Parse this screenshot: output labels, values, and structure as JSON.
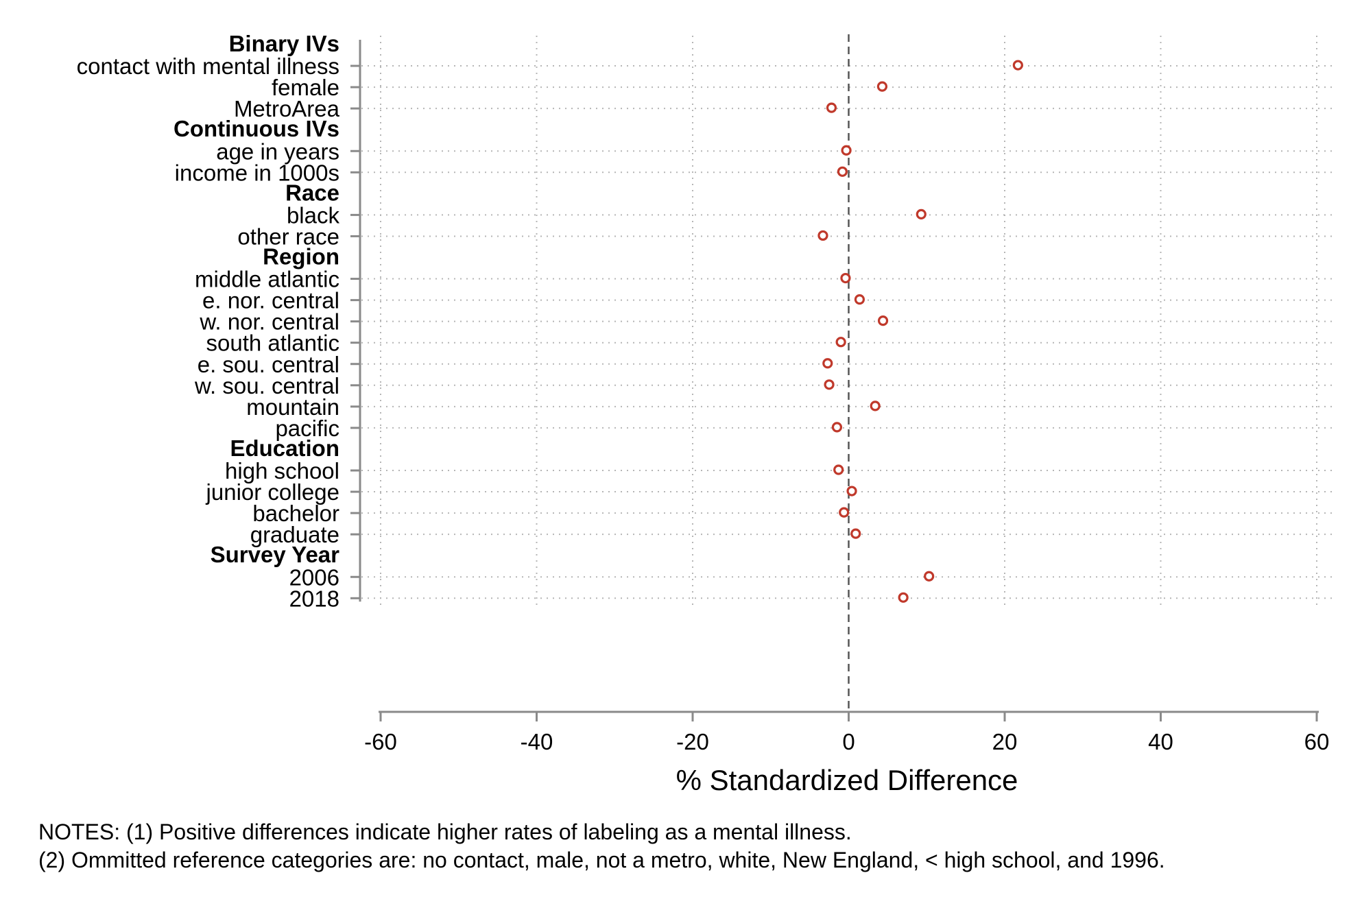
{
  "chart_data": {
    "type": "scatter",
    "xlabel": "% Standardized Difference",
    "ylabel": "",
    "xlim": [
      -60,
      60
    ],
    "xticks": [
      "-60",
      "-40",
      "-20",
      "0",
      "20",
      "40",
      "60"
    ],
    "grid": "dotted vertical at each x tick, dotted horizontal at each variable",
    "reference_line": 0,
    "marker": "hollow circle",
    "marker_color": "#c0392b",
    "groups": [
      {
        "header": "Binary IVs",
        "items": [
          {
            "label": "contact with mental illness",
            "value": 21.7
          },
          {
            "label": "female",
            "value": 4.3
          },
          {
            "label": "MetroArea",
            "value": -2.2
          }
        ]
      },
      {
        "header": "Continuous IVs",
        "items": [
          {
            "label": "age in years",
            "value": -0.3
          },
          {
            "label": "income in 1000s",
            "value": -0.8
          }
        ]
      },
      {
        "header": "Race",
        "items": [
          {
            "label": "black",
            "value": 9.3
          },
          {
            "label": "other race",
            "value": -3.3
          }
        ]
      },
      {
        "header": "Region",
        "items": [
          {
            "label": "middle atlantic",
            "value": -0.4
          },
          {
            "label": "e. nor. central",
            "value": 1.4
          },
          {
            "label": "w. nor. central",
            "value": 4.4
          },
          {
            "label": "south atlantic",
            "value": -1.0
          },
          {
            "label": "e. sou. central",
            "value": -2.7
          },
          {
            "label": "w. sou. central",
            "value": -2.5
          },
          {
            "label": "mountain",
            "value": 3.4
          },
          {
            "label": "pacific",
            "value": -1.5
          }
        ]
      },
      {
        "header": "Education",
        "items": [
          {
            "label": "high school",
            "value": -1.3
          },
          {
            "label": "junior college",
            "value": 0.4
          },
          {
            "label": "bachelor",
            "value": -0.6
          },
          {
            "label": "graduate",
            "value": 0.9
          }
        ]
      },
      {
        "header": "Survey Year",
        "items": [
          {
            "label": "2006",
            "value": 10.3
          },
          {
            "label": "2018",
            "value": 7.0
          }
        ]
      }
    ]
  },
  "notes": [
    "NOTES: (1) Positive differences indicate higher rates of labeling as a mental illness.",
    "(2) Ommitted reference categories are: no contact, male, not a metro, white, New England, < high school, and 1996."
  ]
}
